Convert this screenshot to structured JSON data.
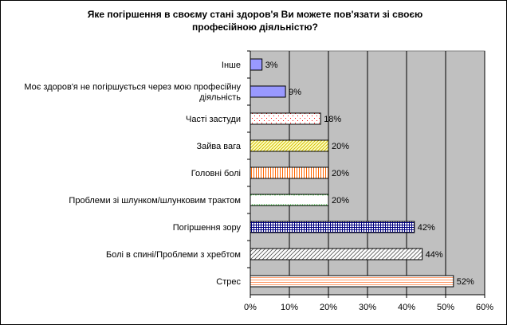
{
  "chart_data": {
    "type": "bar",
    "orientation": "horizontal",
    "title_lines": [
      "Яке погіршення в своєму стані здоров'я Ви можете пов'язати зі своєю",
      "професійною діяльністю?"
    ],
    "categories": [
      [
        "Інше"
      ],
      [
        "Моє здоров'я не погіршується через мою професійну",
        "діяльність"
      ],
      [
        "Часті застуди"
      ],
      [
        "Зайва вага"
      ],
      [
        "Головні болі"
      ],
      [
        "Проблеми зі шлунком/шлунковим трактом"
      ],
      [
        "Погіршення зору"
      ],
      [
        "Болі в спині/Проблеми з хребтом"
      ],
      [
        "Стрес"
      ]
    ],
    "values": [
      3,
      9,
      18,
      20,
      20,
      20,
      42,
      44,
      52
    ],
    "value_labels": [
      "3%",
      "9%",
      "18%",
      "20%",
      "20%",
      "20%",
      "42%",
      "44%",
      "52%"
    ],
    "xlim": [
      0,
      60
    ],
    "xticks": [
      "0%",
      "10%",
      "20%",
      "30%",
      "40%",
      "50%",
      "60%"
    ],
    "grid": true,
    "plot_background": "#c0c0c0",
    "bar_patterns": [
      "solid-blue",
      "solid-blue",
      "dots-red",
      "diag-yellow",
      "vert-orange",
      "zigzag-green",
      "grid-blue",
      "diag-black",
      "horiz-orange"
    ],
    "colors": {
      "blue": "#9999ff",
      "red": "#ff0000",
      "yellow": "#d4c000",
      "orange": "#ff6600",
      "green": "#33cc33",
      "navy": "#000080",
      "dark": "#555555",
      "orange_light": "#ff9966"
    }
  }
}
